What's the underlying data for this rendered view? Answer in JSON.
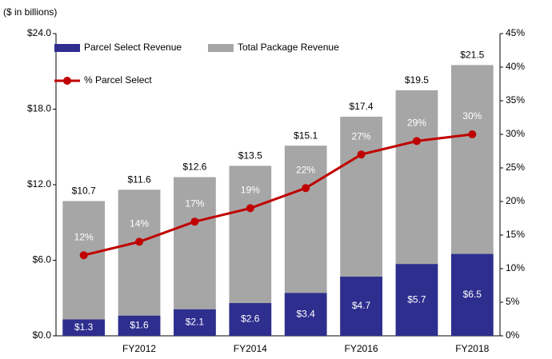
{
  "chart_data": {
    "type": "combo",
    "subtitle": "($ in billions)",
    "categories": [
      null,
      "FY2012",
      null,
      "FY2014",
      null,
      "FY2016",
      null,
      "FY2018"
    ],
    "series": [
      {
        "name": "Parcel Select Revenue",
        "color": "#2e2e8f",
        "values": [
          1.3,
          1.6,
          2.1,
          2.6,
          3.4,
          4.7,
          5.7,
          6.5
        ],
        "value_labels": [
          "$1.3",
          "$1.6",
          "$2.1",
          "$2.6",
          "$3.4",
          "$4.7",
          "$5.7",
          "$6.5"
        ]
      },
      {
        "name": "Total Package Revenue",
        "color": "#a6a6a6",
        "values": [
          10.7,
          11.6,
          12.6,
          13.5,
          15.1,
          17.4,
          19.5,
          21.5
        ],
        "value_labels": [
          "$10.7",
          "$11.6",
          "$12.6",
          "$13.5",
          "$15.1",
          "$17.4",
          "$19.5",
          "$21.5"
        ]
      },
      {
        "name": "% Parcel Select",
        "color": "#c00000",
        "axis": "y2",
        "values": [
          12,
          14,
          17,
          19,
          22,
          27,
          29,
          30
        ],
        "value_labels": [
          "12%",
          "14%",
          "17%",
          "19%",
          "22%",
          "27%",
          "29%",
          "30%"
        ]
      }
    ],
    "ylim": [
      0,
      24
    ],
    "yticks": [
      {
        "value": 0,
        "label": "$0.0"
      },
      {
        "value": 6,
        "label": "$6.0"
      },
      {
        "value": 12,
        "label": "$12.0"
      },
      {
        "value": 18,
        "label": "$18.0"
      },
      {
        "value": 24,
        "label": "$24.0"
      }
    ],
    "y2lim": [
      0,
      45
    ],
    "y2ticks": [
      {
        "value": 0,
        "label": "0%"
      },
      {
        "value": 5,
        "label": "5%"
      },
      {
        "value": 10,
        "label": "10%"
      },
      {
        "value": 15,
        "label": "15%"
      },
      {
        "value": 20,
        "label": "20%"
      },
      {
        "value": 25,
        "label": "25%"
      },
      {
        "value": 30,
        "label": "30%"
      },
      {
        "value": 35,
        "label": "35%"
      },
      {
        "value": 40,
        "label": "40%"
      },
      {
        "value": 45,
        "label": "45%"
      }
    ],
    "legend": "top-left"
  }
}
